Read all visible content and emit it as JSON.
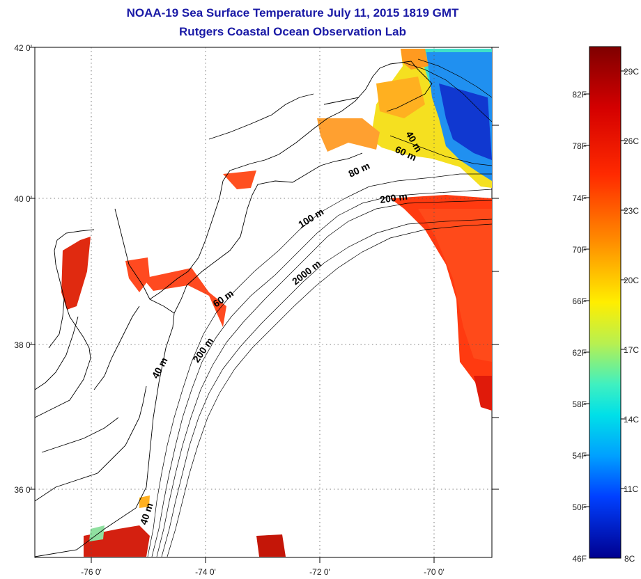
{
  "header": {
    "title": "NOAA-19 Sea Surface Temperature July 11, 2015 1819 GMT",
    "subtitle": "Rutgers Coastal Ocean Observation Lab"
  },
  "map": {
    "lat_labels": [
      "42 0'",
      "40 0'",
      "38 0'",
      "36 0'"
    ],
    "lon_labels": [
      "-76 0'",
      "-74 0'",
      "-72 0'",
      "-70 0'"
    ],
    "grid": "dotted",
    "isobath_labels": [
      "40 m",
      "60 m",
      "80 m",
      "200 m",
      "100 m",
      "2000 m",
      "60 m",
      "200 m",
      "40 m",
      "40 m"
    ]
  },
  "colorbar": {
    "fahrenheit_labels": [
      "82F",
      "78F",
      "74F",
      "70F",
      "66F",
      "62F",
      "58F",
      "54F",
      "50F",
      "46F"
    ],
    "celsius_labels": [
      "29C",
      "26C",
      "23C",
      "20C",
      "17C",
      "14C",
      "11C",
      "8C"
    ],
    "colors": {
      "top": "#7f0000",
      "red": "#ff1a00",
      "orange": "#ff8800",
      "yellow": "#ffee00",
      "green": "#9be34a",
      "cyan": "#00e5e5",
      "blue": "#0050ff",
      "bottom": "#00008f"
    }
  }
}
